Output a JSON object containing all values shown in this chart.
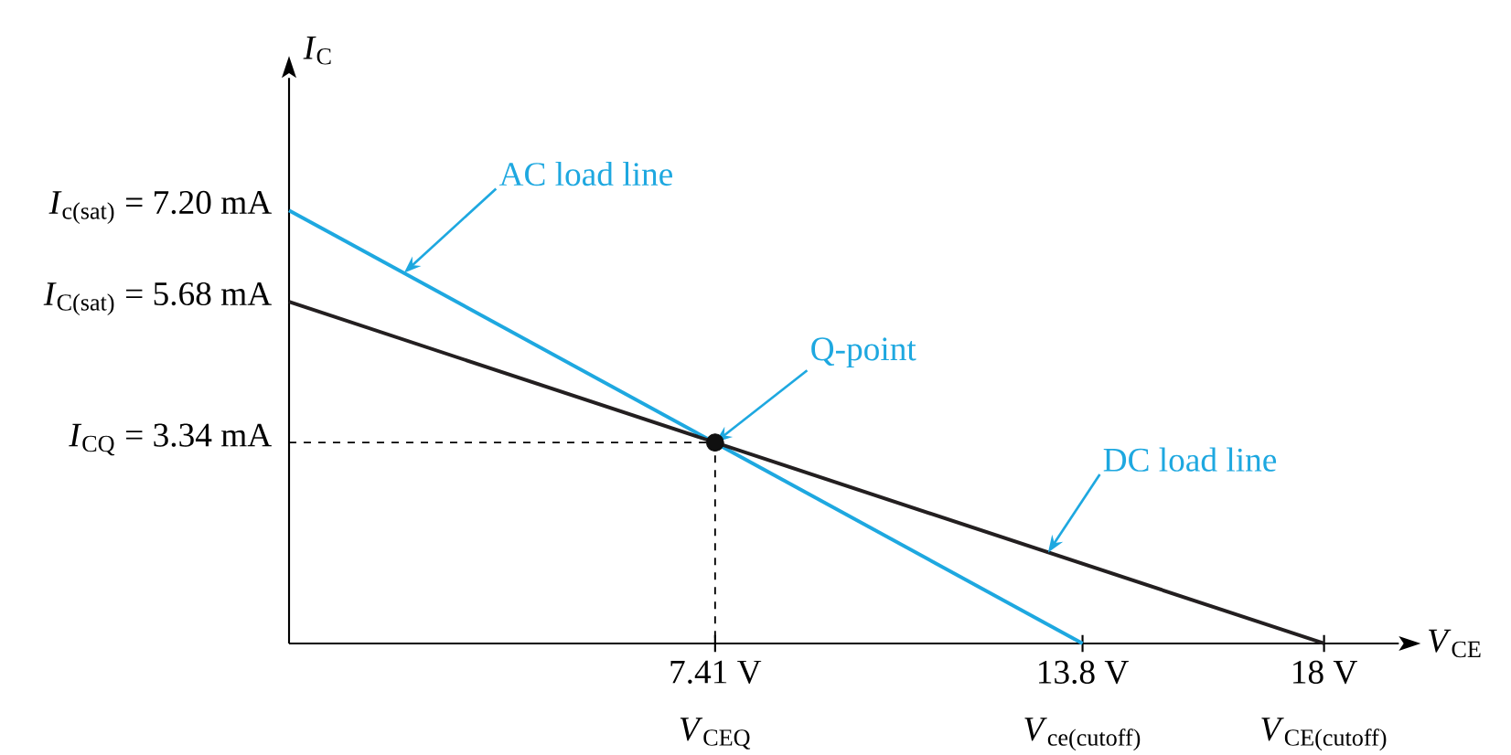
{
  "chart_data": {
    "type": "line",
    "xlabel": "*V*$_{CE}$",
    "ylabel": "*I*$_{C}$",
    "xlim": [
      0,
      19.3
    ],
    "ylim": [
      0,
      9.4
    ],
    "xticks": [
      {
        "value": 7.41,
        "label": "7.41 V"
      },
      {
        "value": 13.8,
        "label": "13.8 V"
      },
      {
        "value": 18,
        "label": "18 V"
      }
    ],
    "yticks": [
      {
        "value": 3.34,
        "label": "*I*$_{CQ}$ = 3.34 mA"
      },
      {
        "value": 5.68,
        "label": "*I*$_{C(sat)}$ = 5.68 mA"
      },
      {
        "value": 7.2,
        "label": "*I*$_{c(sat)}$ = 7.20 mA"
      }
    ],
    "series": [
      {
        "color": "#1ea8e0",
        "x": [
          0,
          13.8
        ],
        "values": [
          7.2,
          0
        ]
      },
      {
        "color": "#231f20",
        "x": [
          0,
          18
        ],
        "values": [
          5.68,
          0
        ]
      },
      {
        "color": "#000000",
        "line_style": "dashed",
        "x": [
          0,
          7.41,
          7.41
        ],
        "values": [
          3.34,
          3.34,
          0
        ]
      },
      {
        "type": "scatter",
        "color": "#101010",
        "marker": "circle",
        "x": [
          7.41
        ],
        "values": [
          3.34
        ]
      }
    ],
    "annotations": [
      {
        "text": "AC load line",
        "x": 2.0,
        "y": 6.16
      },
      {
        "text": "Q-point",
        "x": 7.41,
        "y": 3.34
      },
      {
        "text": "DC load line",
        "x": 13.2,
        "y": 1.51
      },
      {
        "text": "*V*$_{CEQ}$",
        "x": 7.41,
        "y": 0
      },
      {
        "text": "*V*$_{ce(cutoff)}$",
        "x": 13.8,
        "y": 0
      },
      {
        "text": "*V*$_{CE(cutoff)}$",
        "x": 18,
        "y": 0
      }
    ],
    "grid": false
  }
}
